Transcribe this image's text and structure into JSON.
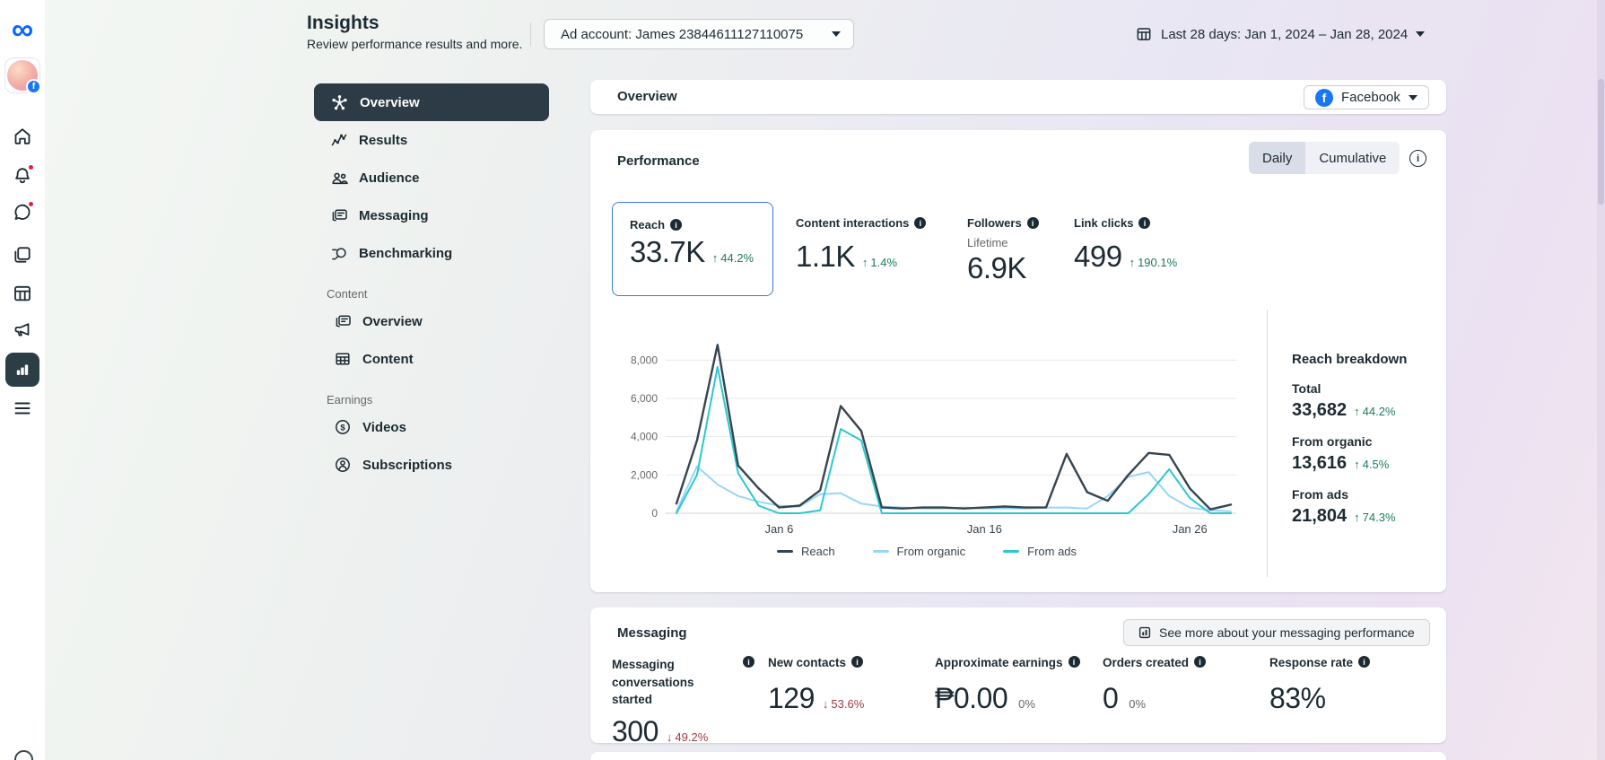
{
  "rail": {
    "active": "insights",
    "icons": [
      "home",
      "notifications",
      "messages",
      "posts",
      "planner",
      "ads",
      "insights",
      "all-tools"
    ]
  },
  "header": {
    "title": "Insights",
    "subtitle": "Review performance results and more.",
    "ad_account": "Ad account: James 23844611127110075",
    "date_range": "Last 28 days: Jan 1, 2024 – Jan 28, 2024"
  },
  "nav": {
    "items": [
      {
        "label": "Overview",
        "active": true
      },
      {
        "label": "Results"
      },
      {
        "label": "Audience"
      },
      {
        "label": "Messaging"
      },
      {
        "label": "Benchmarking"
      }
    ],
    "sections": [
      {
        "label": "Content",
        "items": [
          {
            "label": "Overview"
          },
          {
            "label": "Content"
          }
        ]
      },
      {
        "label": "Earnings",
        "items": [
          {
            "label": "Videos"
          },
          {
            "label": "Subscriptions"
          }
        ]
      }
    ]
  },
  "overview_bar": {
    "title": "Overview",
    "platform": "Facebook"
  },
  "performance": {
    "title": "Performance",
    "toggle": {
      "options": [
        "Daily",
        "Cumulative"
      ],
      "selected": "Daily"
    },
    "metrics": [
      {
        "label": "Reach",
        "value": "33.7K",
        "delta": "44.2%",
        "direction": "up",
        "selected": true
      },
      {
        "label": "Content interactions",
        "value": "1.1K",
        "delta": "1.4%",
        "direction": "up"
      },
      {
        "label": "Followers",
        "sublabel": "Lifetime",
        "value": "6.9K"
      },
      {
        "label": "Link clicks",
        "value": "499",
        "delta": "190.1%",
        "direction": "up"
      }
    ],
    "breakdown": {
      "title": "Reach breakdown",
      "rows": [
        {
          "label": "Total",
          "value": "33,682",
          "delta": "44.2%",
          "direction": "up"
        },
        {
          "label": "From organic",
          "value": "13,616",
          "delta": "4.5%",
          "direction": "up"
        },
        {
          "label": "From ads",
          "value": "21,804",
          "delta": "74.3%",
          "direction": "up"
        }
      ]
    }
  },
  "chart_data": {
    "type": "line",
    "title": "",
    "xlabel": "",
    "ylabel": "",
    "grid": true,
    "legend_position": "bottom",
    "ylim": [
      0,
      9000
    ],
    "yticks": [
      0,
      2000,
      4000,
      6000,
      8000
    ],
    "xtick_labels": [
      "Jan 6",
      "Jan 16",
      "Jan 26"
    ],
    "xtick_positions": [
      6,
      16,
      26
    ],
    "x": [
      "Jan 1",
      "Jan 2",
      "Jan 3",
      "Jan 4",
      "Jan 5",
      "Jan 6",
      "Jan 7",
      "Jan 8",
      "Jan 9",
      "Jan 10",
      "Jan 11",
      "Jan 12",
      "Jan 13",
      "Jan 14",
      "Jan 15",
      "Jan 16",
      "Jan 17",
      "Jan 18",
      "Jan 19",
      "Jan 20",
      "Jan 21",
      "Jan 22",
      "Jan 23",
      "Jan 24",
      "Jan 25",
      "Jan 26",
      "Jan 27",
      "Jan 28"
    ],
    "series": [
      {
        "name": "Reach",
        "color": "#36454f",
        "values": [
          500,
          3800,
          8800,
          2500,
          1300,
          300,
          400,
          1200,
          5600,
          4300,
          300,
          250,
          300,
          300,
          250,
          300,
          350,
          300,
          300,
          3100,
          1100,
          650,
          2000,
          3150,
          3050,
          1300,
          200,
          450
        ]
      },
      {
        "name": "From organic",
        "color": "#99d5f7",
        "values": [
          100,
          2450,
          1500,
          900,
          600,
          400,
          350,
          1000,
          1050,
          500,
          350,
          300,
          250,
          250,
          300,
          250,
          250,
          250,
          300,
          300,
          250,
          900,
          1900,
          2150,
          900,
          300,
          150,
          100
        ]
      },
      {
        "name": "From ads",
        "color": "#2ac8d0",
        "values": [
          0,
          2000,
          7650,
          2100,
          400,
          0,
          0,
          150,
          4400,
          3800,
          0,
          0,
          0,
          0,
          0,
          0,
          0,
          0,
          0,
          0,
          0,
          0,
          0,
          1000,
          2300,
          800,
          0,
          0
        ]
      }
    ]
  },
  "messaging": {
    "title": "Messaging",
    "see_more": "See more about your messaging performance",
    "metrics": [
      {
        "label": "Messaging conversations started",
        "value": "300",
        "delta": "49.2%",
        "direction": "down"
      },
      {
        "label": "New contacts",
        "value": "129",
        "delta": "53.6%",
        "direction": "down"
      },
      {
        "label": "Approximate earnings",
        "value": "₱0.00",
        "delta": "0%",
        "direction": "flat"
      },
      {
        "label": "Orders created",
        "value": "0",
        "delta": "0%",
        "direction": "flat"
      },
      {
        "label": "Response rate",
        "value": "83%"
      }
    ]
  },
  "colors": {
    "accent_blue": "#0866ff",
    "facebook_blue": "#1877f2",
    "positive_green": "#1d7a5e",
    "negative_red": "#9e3b3f",
    "active_nav_bg": "#2c3b45",
    "line_reach": "#36454f",
    "line_organic": "#99d5f7",
    "line_ads": "#2ac8d0"
  }
}
